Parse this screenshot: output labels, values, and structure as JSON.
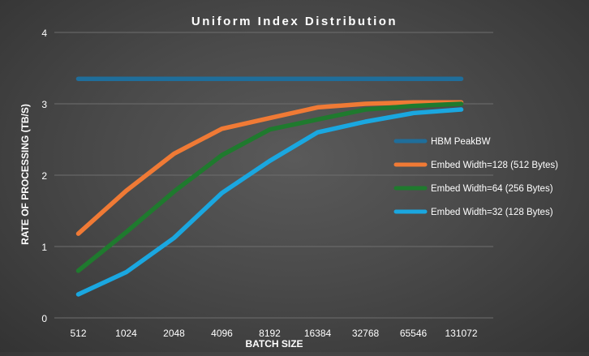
{
  "chart_data": {
    "type": "line",
    "title": "Uniform Index Distribution",
    "xlabel": "BATCH SIZE",
    "ylabel": "RATE OF PROCESSING (TB/S)",
    "categories": [
      "512",
      "1024",
      "2048",
      "4096",
      "8192",
      "16384",
      "32768",
      "65546",
      "131072"
    ],
    "ylim": [
      0,
      4
    ],
    "yticks": [
      "0",
      "1",
      "2",
      "3",
      "4"
    ],
    "grid": true,
    "legend_position": "right",
    "series": [
      {
        "name": "HBM PeakBW",
        "color": "#1f6e9b",
        "values": [
          3.35,
          3.35,
          3.35,
          3.35,
          3.35,
          3.35,
          3.35,
          3.35,
          3.35
        ]
      },
      {
        "name": "Embed Width=128 (512 Bytes)",
        "color": "#f07a35",
        "values": [
          1.18,
          1.78,
          2.3,
          2.65,
          2.8,
          2.95,
          3.0,
          3.02,
          3.02
        ]
      },
      {
        "name": "Embed Width=64 (256 Bytes)",
        "color": "#1f7a2e",
        "values": [
          0.66,
          1.2,
          1.77,
          2.28,
          2.64,
          2.78,
          2.92,
          2.97,
          3.0
        ]
      },
      {
        "name": "Embed Width=32 (128 Bytes)",
        "color": "#1aa7e0",
        "values": [
          0.33,
          0.64,
          1.12,
          1.75,
          2.2,
          2.6,
          2.75,
          2.87,
          2.92
        ]
      }
    ]
  }
}
